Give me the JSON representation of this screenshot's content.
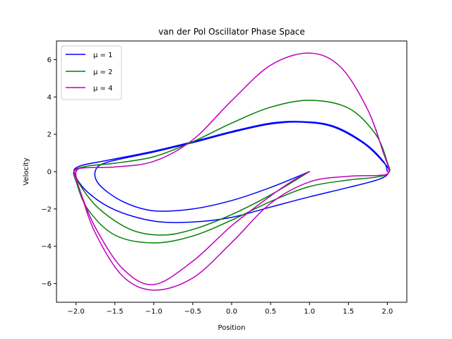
{
  "chart_data": {
    "type": "line",
    "title": "van der Pol Oscillator Phase Space",
    "xlabel": "Position",
    "ylabel": "Velocity",
    "xlim": [
      -2.25,
      2.25
    ],
    "ylim": [
      -7.0,
      7.0
    ],
    "xticks": [
      -2.0,
      -1.5,
      -1.0,
      -0.5,
      0.0,
      0.5,
      1.0,
      1.5,
      2.0
    ],
    "xtick_labels": [
      "−2.0",
      "−1.5",
      "−1.0",
      "−0.5",
      "0.0",
      "0.5",
      "1.0",
      "1.5",
      "2.0"
    ],
    "yticks": [
      -6,
      -4,
      -2,
      0,
      2,
      4,
      6
    ],
    "ytick_labels": [
      "−6",
      "−4",
      "−2",
      "0",
      "2",
      "4",
      "6"
    ],
    "grid": false,
    "legend": "top-left",
    "series": [
      {
        "name": "μ = 1",
        "color": "#0000ff",
        "points": [
          [
            1.0,
            0.0
          ],
          [
            0.5,
            -0.85
          ],
          [
            0.0,
            -1.55
          ],
          [
            -0.5,
            -2.0
          ],
          [
            -1.0,
            -2.1
          ],
          [
            -1.4,
            -1.6
          ],
          [
            -1.7,
            -0.7
          ],
          [
            -1.75,
            0.05
          ],
          [
            -1.6,
            0.5
          ],
          [
            -1.0,
            1.05
          ],
          [
            -0.5,
            1.55
          ],
          [
            0.0,
            2.1
          ],
          [
            0.5,
            2.55
          ],
          [
            0.9,
            2.65
          ],
          [
            1.3,
            2.4
          ],
          [
            1.7,
            1.5
          ],
          [
            1.95,
            0.5
          ],
          [
            2.02,
            0.0
          ],
          [
            1.9,
            -0.4
          ],
          [
            1.5,
            -0.85
          ],
          [
            1.0,
            -1.35
          ],
          [
            0.5,
            -1.9
          ],
          [
            0.0,
            -2.45
          ],
          [
            -0.5,
            -2.7
          ],
          [
            -1.0,
            -2.65
          ],
          [
            -1.5,
            -2.05
          ],
          [
            -1.85,
            -1.1
          ],
          [
            -2.02,
            -0.1
          ],
          [
            -1.95,
            0.3
          ],
          [
            -1.6,
            0.6
          ],
          [
            -1.0,
            1.1
          ],
          [
            -0.5,
            1.6
          ],
          [
            0.0,
            2.15
          ],
          [
            0.5,
            2.6
          ],
          [
            0.9,
            2.68
          ],
          [
            1.3,
            2.45
          ],
          [
            1.7,
            1.55
          ],
          [
            1.95,
            0.55
          ],
          [
            2.0,
            0.0
          ]
        ]
      },
      {
        "name": "μ = 2",
        "color": "#008000",
        "points": [
          [
            1.0,
            0.0
          ],
          [
            0.5,
            -1.25
          ],
          [
            0.0,
            -2.3
          ],
          [
            -0.5,
            -3.1
          ],
          [
            -0.9,
            -3.4
          ],
          [
            -1.3,
            -3.1
          ],
          [
            -1.7,
            -2.0
          ],
          [
            -1.95,
            -0.7
          ],
          [
            -2.0,
            0.0
          ],
          [
            -1.85,
            0.3
          ],
          [
            -1.5,
            0.45
          ],
          [
            -1.0,
            0.8
          ],
          [
            -0.5,
            1.6
          ],
          [
            0.0,
            2.6
          ],
          [
            0.5,
            3.45
          ],
          [
            1.0,
            3.82
          ],
          [
            1.5,
            3.4
          ],
          [
            1.85,
            2.0
          ],
          [
            2.0,
            0.5
          ],
          [
            2.02,
            -0.05
          ],
          [
            1.85,
            -0.3
          ],
          [
            1.5,
            -0.45
          ],
          [
            1.0,
            -0.8
          ],
          [
            0.5,
            -1.6
          ],
          [
            0.0,
            -2.6
          ],
          [
            -0.5,
            -3.45
          ],
          [
            -1.0,
            -3.82
          ],
          [
            -1.5,
            -3.4
          ],
          [
            -1.85,
            -2.0
          ],
          [
            -2.0,
            -0.5
          ],
          [
            -2.02,
            0.05
          ],
          [
            -1.85,
            0.3
          ],
          [
            -1.5,
            0.45
          ],
          [
            -1.0,
            0.8
          ],
          [
            -0.5,
            1.6
          ],
          [
            0.0,
            2.6
          ],
          [
            0.5,
            3.45
          ],
          [
            1.0,
            3.82
          ],
          [
            1.5,
            3.4
          ],
          [
            1.85,
            2.0
          ],
          [
            2.0,
            0.5
          ]
        ]
      },
      {
        "name": "μ = 4",
        "color": "#bf00bf",
        "points": [
          [
            1.0,
            0.0
          ],
          [
            0.8,
            -0.45
          ],
          [
            0.5,
            -1.3
          ],
          [
            0.0,
            -2.9
          ],
          [
            -0.5,
            -4.8
          ],
          [
            -1.0,
            -6.05
          ],
          [
            -1.4,
            -5.2
          ],
          [
            -1.75,
            -3.0
          ],
          [
            -1.95,
            -1.0
          ],
          [
            -2.0,
            0.0
          ],
          [
            -1.9,
            0.2
          ],
          [
            -1.5,
            0.25
          ],
          [
            -1.0,
            0.55
          ],
          [
            -0.5,
            1.7
          ],
          [
            0.0,
            3.8
          ],
          [
            0.5,
            5.7
          ],
          [
            1.0,
            6.35
          ],
          [
            1.4,
            5.6
          ],
          [
            1.75,
            3.3
          ],
          [
            1.95,
            1.0
          ],
          [
            2.02,
            0.0
          ],
          [
            1.9,
            -0.2
          ],
          [
            1.5,
            -0.25
          ],
          [
            1.0,
            -0.55
          ],
          [
            0.5,
            -1.7
          ],
          [
            0.0,
            -3.8
          ],
          [
            -0.5,
            -5.7
          ],
          [
            -1.0,
            -6.35
          ],
          [
            -1.4,
            -5.6
          ],
          [
            -1.75,
            -3.3
          ],
          [
            -1.95,
            -1.0
          ],
          [
            -2.02,
            0.0
          ],
          [
            -1.9,
            0.2
          ],
          [
            -1.5,
            0.25
          ],
          [
            -1.0,
            0.55
          ],
          [
            -0.5,
            1.7
          ],
          [
            0.0,
            3.8
          ],
          [
            0.5,
            5.7
          ],
          [
            1.0,
            6.35
          ],
          [
            1.4,
            5.6
          ],
          [
            1.75,
            3.3
          ],
          [
            1.95,
            1.0
          ]
        ]
      }
    ]
  }
}
